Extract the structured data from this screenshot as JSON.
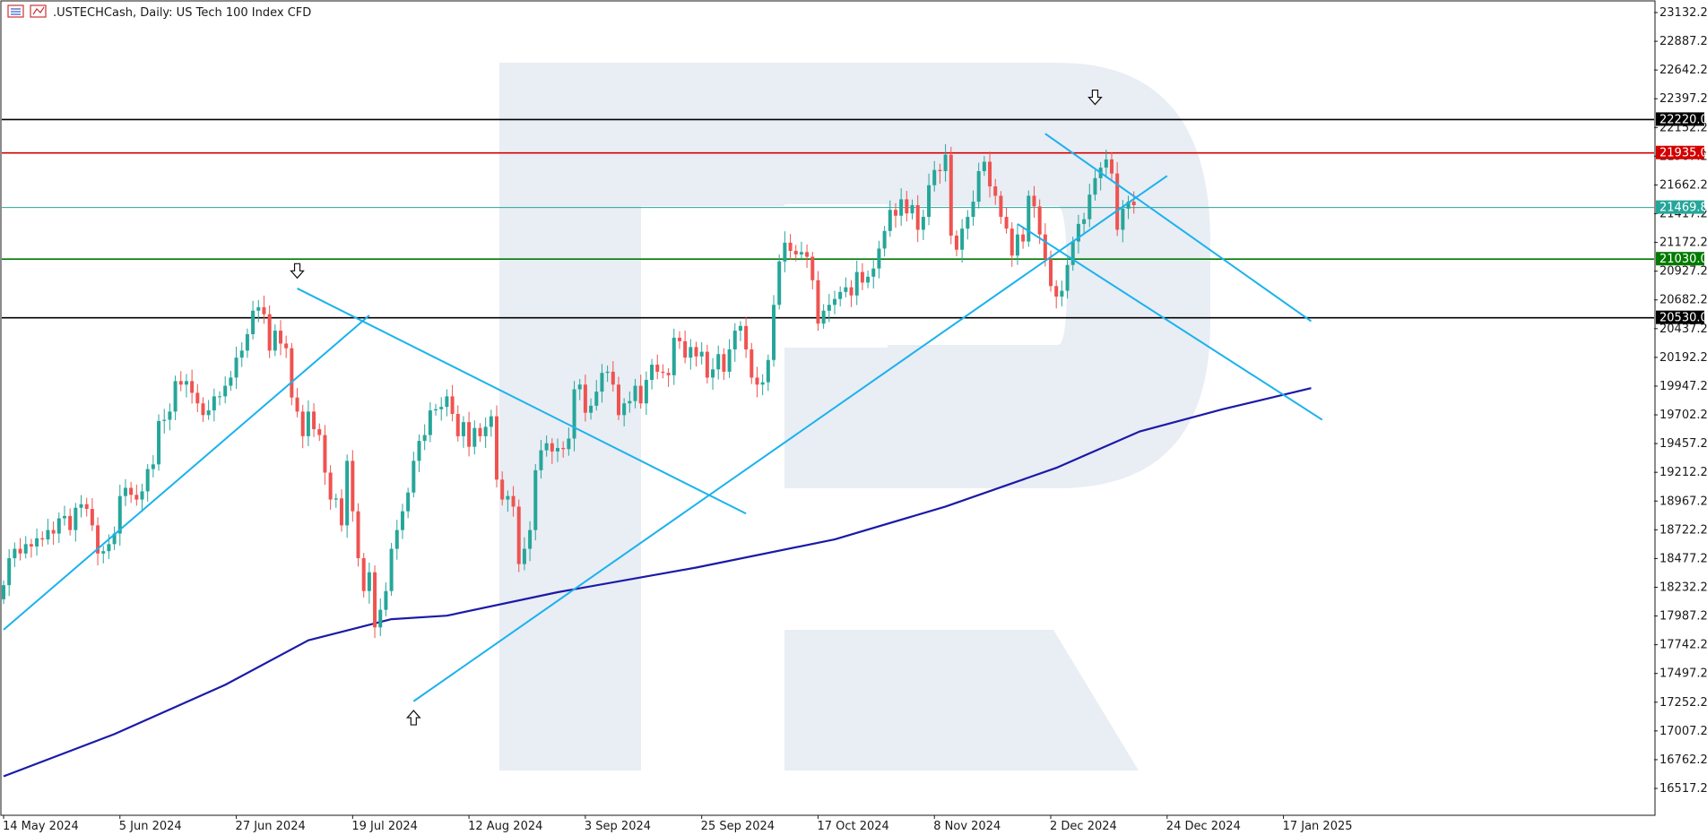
{
  "header": {
    "symbol": ".USTECHCash",
    "timeframe": "Daily",
    "description": "US Tech 100 Index CFD",
    "title": ".USTECHCash, Daily:  US Tech 100 Index CFD"
  },
  "colors": {
    "bull": "#26a69a",
    "bear": "#ef5350",
    "trendline": "#1ab2ee",
    "moving_average": "#1a1aa8",
    "resistance_red": "#d40000",
    "support_green": "#007a00",
    "level_black": "#000000",
    "current_price": "#26a69a",
    "watermark": "#e9edf4"
  },
  "chart_data": {
    "type": "candlestick",
    "instrument": ".USTECHCash",
    "timeframe": "Daily",
    "y_axis": {
      "ylim": [
        16395,
        23232
      ],
      "ticks": [
        23132.2,
        22887.2,
        22642.2,
        22397.2,
        22152.2,
        21907.2,
        21662.2,
        21417.2,
        21172.2,
        20927.2,
        20682.2,
        20437.2,
        20192.2,
        19947.2,
        19702.2,
        19457.2,
        19212.2,
        18967.2,
        18722.2,
        18477.2,
        18232.2,
        17987.2,
        17742.2,
        17497.2,
        17252.2,
        17007.2,
        16762.2,
        16517.2
      ]
    },
    "x_axis": {
      "date_labels": [
        "14 May 2024",
        "5 Jun 2024",
        "27 Jun 2024",
        "19 Jul 2024",
        "12 Aug 2024",
        "3 Sep 2024",
        "25 Sep 2024",
        "17 Oct 2024",
        "8 Nov 2024",
        "2 Dec 2024",
        "24 Dec 2024",
        "17 Jan 2025"
      ],
      "first_date": "14 May 2024",
      "last_date": "17 Jan 2025"
    },
    "close": [
      18250,
      18480,
      18560,
      18520,
      18600,
      18580,
      18650,
      18640,
      18720,
      18690,
      18820,
      18840,
      18720,
      18910,
      18940,
      18900,
      18760,
      18520,
      18540,
      18600,
      18690,
      19010,
      19080,
      19020,
      18980,
      19050,
      19240,
      19280,
      19650,
      19660,
      19730,
      19990,
      19960,
      19990,
      19890,
      19800,
      19700,
      19740,
      19860,
      19860,
      19950,
      20020,
      20190,
      20250,
      20390,
      20590,
      20620,
      20560,
      20250,
      20420,
      20310,
      20270,
      19850,
      19730,
      19520,
      19730,
      19580,
      19530,
      19210,
      18980,
      18990,
      18760,
      19310,
      18880,
      18480,
      18200,
      18360,
      17890,
      18040,
      18200,
      18560,
      18720,
      18880,
      19040,
      19310,
      19480,
      19530,
      19740,
      19750,
      19770,
      19860,
      19710,
      19520,
      19640,
      19430,
      19590,
      19520,
      19600,
      19690,
      19150,
      18980,
      19010,
      18920,
      18430,
      18560,
      18720,
      19230,
      19400,
      19460,
      19390,
      19420,
      19410,
      19500,
      19920,
      19960,
      19720,
      19780,
      19900,
      20060,
      20070,
      19960,
      19700,
      19800,
      19820,
      19950,
      19800,
      20000,
      20130,
      20070,
      20060,
      20040,
      20360,
      20330,
      20190,
      20280,
      20200,
      20240,
      20020,
      20090,
      20220,
      20070,
      20260,
      20420,
      20460,
      20260,
      20020,
      19960,
      19980,
      20170,
      20640,
      21010,
      21170,
      21100,
      21070,
      21090,
      21050,
      20850,
      20480,
      20590,
      20640,
      20690,
      20750,
      20790,
      20720,
      20920,
      20830,
      20880,
      20950,
      21120,
      21270,
      21450,
      21400,
      21540,
      21420,
      21490,
      21280,
      21390,
      21660,
      21790,
      21780,
      21920,
      21230,
      21110,
      21290,
      21390,
      21520,
      21780,
      21860,
      21650,
      21570,
      21390,
      21290,
      21060,
      21240,
      21180,
      21570,
      21480,
      21240,
      21030,
      20800,
      20710,
      20760,
      20980,
      21180,
      21330,
      21370,
      21580,
      21720,
      21810,
      21880,
      21760,
      21280,
      21460,
      21520,
      21490
    ]
  },
  "annotations": {
    "levels": [
      {
        "name": "level-22220",
        "label": "22220.0",
        "price": 22220.0,
        "color": "#000000",
        "label_bg": "#000000",
        "label_fg": "#ffffff"
      },
      {
        "name": "level-21935",
        "label": "21935.0",
        "price": 21935.0,
        "color": "#d40000",
        "label_bg": "#d40000",
        "label_fg": "#ffffff"
      },
      {
        "name": "level-current",
        "label": "21469.8",
        "price": 21469.8,
        "color": "#26a69a",
        "label_bg": "#26a69a",
        "label_fg": "#ffffff"
      },
      {
        "name": "level-21030",
        "label": "21030.0",
        "price": 21030.0,
        "color": "#007a00",
        "label_bg": "#007a00",
        "label_fg": "#ffffff"
      },
      {
        "name": "level-20530",
        "label": "20530.0",
        "price": 20530.0,
        "color": "#000000",
        "label_bg": "#000000",
        "label_fg": "#ffffff"
      }
    ],
    "trendlines": [
      {
        "name": "trendline-may-jul-support",
        "from": [
          0,
          17870
        ],
        "to": [
          66,
          20550
        ]
      },
      {
        "name": "trendline-jul-sep-resistance",
        "from": [
          53,
          20780
        ],
        "to": [
          134,
          18860
        ]
      },
      {
        "name": "trendline-aug-dec-support",
        "from": [
          74,
          17260
        ],
        "to": [
          210,
          21740
        ]
      },
      {
        "name": "trendline-dec-jan-resistance",
        "from": [
          188,
          22100
        ],
        "to": [
          236,
          20500
        ]
      },
      {
        "name": "trendline-dec-jan-lower",
        "from": [
          183,
          21330
        ],
        "to": [
          238,
          19660
        ]
      }
    ],
    "arrows": [
      {
        "name": "arrow-down-jul",
        "direction": "down",
        "bar": 53,
        "price": 20930
      },
      {
        "name": "arrow-up-aug",
        "direction": "up",
        "bar": 74,
        "price": 17120
      },
      {
        "name": "arrow-down-dec",
        "direction": "down",
        "bar": 197,
        "price": 22410
      }
    ],
    "moving_average": {
      "name": "moving-average-200",
      "from_bar": 0,
      "to_bar": 236,
      "points": [
        [
          0,
          16620
        ],
        [
          20,
          16980
        ],
        [
          40,
          17400
        ],
        [
          55,
          17780
        ],
        [
          70,
          17960
        ],
        [
          80,
          17990
        ],
        [
          100,
          18190
        ],
        [
          125,
          18400
        ],
        [
          150,
          18640
        ],
        [
          170,
          18920
        ],
        [
          190,
          19250
        ],
        [
          205,
          19560
        ],
        [
          220,
          19750
        ],
        [
          236,
          19930
        ]
      ]
    }
  }
}
